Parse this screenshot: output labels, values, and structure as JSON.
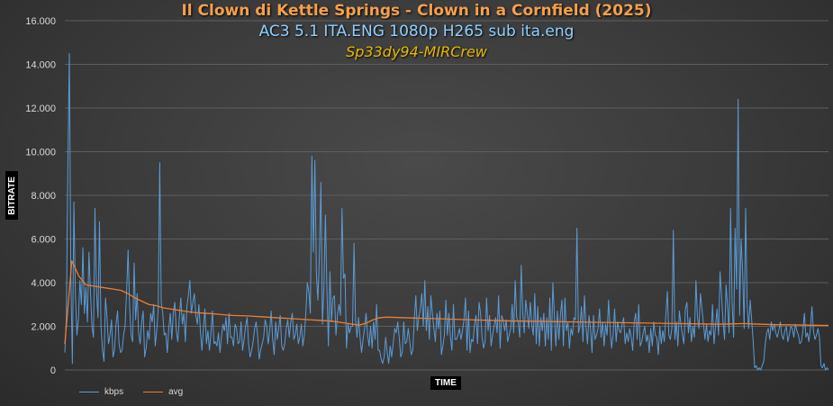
{
  "chart_data": {
    "type": "line",
    "title": "Il Clown di Kettle Springs - Clown in a Cornfield (2025)",
    "subtitle": "AC3 5.1 ITA.ENG 1080p H265 sub ita.eng",
    "credit": "Sp33dy94-MIRCrew",
    "xlabel": "TIME",
    "ylabel": "BITRATE",
    "ylim": [
      0,
      16000
    ],
    "yticks": [
      "0",
      "2.000",
      "4.000",
      "6.000",
      "8.000",
      "10.000",
      "12.000",
      "14.000",
      "16.000"
    ],
    "grid": true,
    "legend_position": "bottom-left",
    "series": [
      {
        "name": "kbps",
        "color": "#5b9bd5",
        "values": [
          800,
          2400,
          9400,
          14500,
          4200,
          300,
          7700,
          3500,
          1600,
          2300,
          4100,
          3000,
          5600,
          2600,
          3800,
          2200,
          5400,
          3600,
          2000,
          1500,
          7400,
          3600,
          2400,
          6800,
          2000,
          900,
          400,
          3300,
          2400,
          1200,
          1600,
          2300,
          600,
          900,
          2100,
          2700,
          1200,
          800,
          900,
          1600,
          2000,
          3600,
          5500,
          2900,
          1600,
          1300,
          4900,
          2300,
          3500,
          1700,
          1200,
          2200,
          2700,
          600,
          1000,
          1800,
          1400,
          2600,
          2200,
          3000,
          1100,
          1800,
          2800,
          9500,
          3100,
          2600,
          1600,
          1700,
          800,
          1900,
          2600,
          1400,
          2600,
          3100,
          1800,
          1300,
          2400,
          3300,
          2100,
          2600,
          1300,
          2900,
          3400,
          4100,
          2600,
          3100,
          3500,
          2500,
          2100,
          3000,
          1800,
          900,
          1900,
          2800,
          1200,
          1800,
          900,
          1700,
          2700,
          1200,
          1300,
          1100,
          1700,
          800,
          1500,
          2100,
          1800,
          2400,
          1200,
          2600,
          1500,
          1500,
          1100,
          2100,
          1900,
          1200,
          1300,
          2200,
          900,
          1400,
          2000,
          2400,
          1200,
          600,
          900,
          1300,
          1900,
          2200,
          1600,
          500,
          900,
          1200,
          1500,
          2300,
          2000,
          1200,
          1800,
          2700,
          1400,
          700,
          2200,
          1400,
          1900,
          2500,
          1100,
          900,
          1200,
          1900,
          2300,
          1500,
          2200,
          2600,
          1400,
          1600,
          2100,
          1200,
          1500,
          2100,
          1100,
          1600,
          2600,
          4000,
          3600,
          2600,
          9800,
          5400,
          9600,
          4400,
          3200,
          5200,
          8600,
          2100,
          3800,
          7100,
          3700,
          1100,
          4500,
          2200,
          3300,
          3400,
          1600,
          2500,
          3000,
          2500,
          7400,
          4200,
          4400,
          1000,
          2100,
          1700,
          2000,
          2000,
          5800,
          2300,
          1500,
          2400,
          1500,
          800,
          1400,
          1900,
          2600,
          1600,
          1100,
          2000,
          1000,
          2200,
          1400,
          3000,
          900,
          900,
          500,
          300,
          600,
          1500,
          800,
          300,
          1100,
          600,
          1200,
          1900,
          1700,
          2200,
          1500,
          600,
          800,
          2200,
          1200,
          1300,
          1900,
          1300,
          700,
          900,
          2300,
          3400,
          1800,
          2400,
          2800,
          3500,
          2000,
          4100,
          1800,
          2900,
          1400,
          3400,
          2600,
          1900,
          1300,
          2600,
          1900,
          2700,
          700,
          1100,
          1600,
          3200,
          1600,
          2600,
          1500,
          900,
          3000,
          1400,
          1400,
          1600,
          1900,
          1400,
          1800,
          2300,
          3300,
          900,
          2700,
          800,
          1400,
          1300,
          2100,
          2500,
          1200,
          3100,
          2600,
          1500,
          1000,
          1300,
          3300,
          1800,
          2500,
          1100,
          1600,
          2000,
          2400,
          1700,
          3400,
          1000,
          2500,
          2300,
          1800,
          2300,
          1300,
          1600,
          1900,
          3000,
          1700,
          4100,
          2400,
          2200,
          1500,
          4800,
          2600,
          1700,
          3200,
          2600,
          1900,
          3100,
          2100,
          1600,
          3500,
          1200,
          2900,
          1100,
          2400,
          1800,
          2600,
          1100,
          2400,
          1400,
          3300,
          900,
          4000,
          2500,
          1100,
          2700,
          1400,
          2500,
          3200,
          1100,
          3300,
          1800,
          2200,
          1000,
          1900,
          1600,
          2400,
          2300,
          6500,
          1700,
          2000,
          2900,
          1300,
          3400,
          2000,
          1200,
          2500,
          1900,
          800,
          2500,
          1400,
          1600,
          1900,
          2800,
          1500,
          2200,
          1100,
          2100,
          1600,
          3200,
          1900,
          1000,
          1600,
          2800,
          1300,
          2200,
          1800,
          1700,
          2100,
          2400,
          1200,
          1700,
          1300,
          1900,
          1500,
          900,
          2200,
          2600,
          1400,
          3000,
          1100,
          1300,
          1700,
          2000,
          1300,
          1600,
          800,
          1900,
          1100,
          2200,
          1600,
          1500,
          700,
          2000,
          1200,
          1800,
          1300,
          2500,
          3600,
          1600,
          1400,
          1900,
          6400,
          1400,
          2200,
          1100,
          2700,
          2100,
          1600,
          1200,
          2800,
          3100,
          1700,
          2400,
          1300,
          2000,
          1500,
          4100,
          2400,
          1900,
          3500,
          2800,
          2100,
          1400,
          2100,
          1300,
          1800,
          1600,
          3000,
          1200,
          2000,
          2800,
          1600,
          4500,
          3400,
          2200,
          1400,
          3900,
          2900,
          1700,
          7400,
          3100,
          1500,
          6500,
          3700,
          12400,
          2500,
          6000,
          4500,
          1900,
          7400,
          3000,
          1900,
          3200,
          2300,
          1300,
          100,
          200,
          0,
          100,
          0,
          200,
          400,
          1200,
          1700,
          1900,
          1400,
          2200,
          1800,
          2100,
          1700,
          1500,
          1800,
          2200,
          1600,
          1400,
          1800,
          2000,
          1300,
          1600,
          2000,
          1900,
          1500,
          2100,
          1800,
          1600,
          1200,
          1300,
          1800,
          2600,
          1500,
          1700,
          1300,
          1900,
          2900,
          1800,
          1400,
          1600,
          1900,
          1500,
          200,
          100,
          300,
          0,
          100,
          0
        ]
      },
      {
        "name": "avg",
        "color": "#ed7d31",
        "values": [
          1200,
          5000,
          4300,
          3900,
          3850,
          3800,
          3750,
          3700,
          3650,
          3500,
          3300,
          3150,
          3000,
          2950,
          2850,
          2800,
          2750,
          2700,
          2650,
          2620,
          2600,
          2580,
          2550,
          2520,
          2500,
          2490,
          2480,
          2460,
          2440,
          2420,
          2400,
          2380,
          2360,
          2340,
          2320,
          2300,
          2280,
          2260,
          2240,
          2200,
          2150,
          2100,
          2050,
          2150,
          2300,
          2400,
          2420,
          2410,
          2400,
          2390,
          2380,
          2370,
          2360,
          2350,
          2340,
          2330,
          2320,
          2310,
          2300,
          2290,
          2280,
          2270,
          2260,
          2250,
          2245,
          2240,
          2235,
          2230,
          2225,
          2220,
          2215,
          2210,
          2205,
          2200,
          2195,
          2190,
          2185,
          2180,
          2175,
          2170,
          2165,
          2160,
          2155,
          2150,
          2145,
          2140,
          2135,
          2130,
          2125,
          2120,
          2115,
          2110,
          2105,
          2100,
          2100,
          2110,
          2120,
          2130,
          2110,
          2100,
          2090,
          2080,
          2075,
          2070,
          2065,
          2060,
          2055,
          2050,
          2045,
          2040
        ]
      }
    ]
  }
}
